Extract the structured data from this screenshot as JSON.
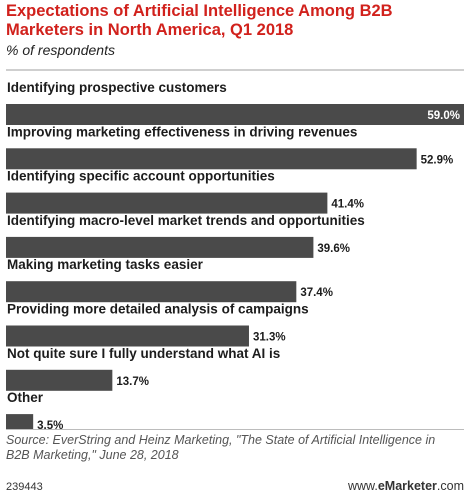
{
  "header": {
    "title": "Expectations of Artificial Intelligence Among B2B Marketers in North America, Q1 2018",
    "subtitle": "% of respondents"
  },
  "chart_data": {
    "type": "bar",
    "orientation": "horizontal",
    "categories": [
      "Identifying prospective customers",
      "Improving marketing effectiveness in driving revenues",
      "Identifying specific account opportunities",
      "Identifying macro-level market trends and opportunities",
      "Making marketing tasks easier",
      "Providing more detailed analysis of campaigns",
      "Not quite sure I fully understand what AI is",
      "Other"
    ],
    "values": [
      59.0,
      52.9,
      41.4,
      39.6,
      37.4,
      31.3,
      13.7,
      3.5
    ],
    "value_labels": [
      "59.0%",
      "52.9%",
      "41.4%",
      "39.6%",
      "37.4%",
      "31.3%",
      "13.7%",
      "3.5%"
    ],
    "bar_color": "#4a4a4a",
    "xlim": [
      0,
      59
    ],
    "grid": false,
    "legend": "none"
  },
  "footer": {
    "source": "Source: EverString and Heinz Marketing, \"The State of Artificial Intelligence in B2B Marketing,\" June 28, 2018",
    "chart_id": "239443",
    "brand_prefix": "www.",
    "brand_name": "eMarketer",
    "brand_suffix": ".com"
  }
}
